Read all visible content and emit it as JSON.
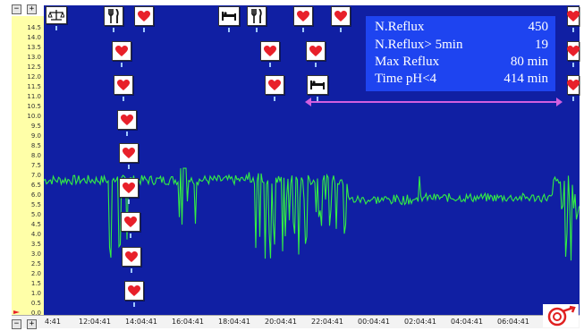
{
  "y_axis": {
    "ticks": [
      "14.5",
      "14.0",
      "13.5",
      "13.0",
      "12.5",
      "12.0",
      "11.5",
      "11.0",
      "10.5",
      "10.0",
      "9.5",
      "9.0",
      "8.5",
      "8.0",
      "7.5",
      "7.0",
      "6.5",
      "6.0",
      "5.5",
      "5.0",
      "4.5",
      "4.0",
      "3.5",
      "3.0",
      "2.5",
      "2.0",
      "1.5",
      "1.0",
      "0.5",
      "0.0"
    ]
  },
  "x_axis": {
    "ticks": [
      "4:41",
      "12:04:41",
      "14:04:41",
      "16:04:41",
      "18:04:41",
      "20:04:41",
      "22:04:41",
      "00:04:41",
      "02:04:41",
      "04:04:41",
      "06:04:41"
    ]
  },
  "controls": {
    "minus": "−",
    "plus": "+"
  },
  "stats": {
    "rows": [
      {
        "label": "N.Reflux",
        "value": "450"
      },
      {
        "label": "N.Reflux> 5min",
        "value": "19"
      },
      {
        "label": "Max Reflux",
        "value": "80 min"
      },
      {
        "label": "Time pH<4",
        "value": "414 min"
      }
    ]
  },
  "colors": {
    "plot_bg": "#101fa3",
    "trace": "#33ee44",
    "stats_bg": "#1e44f0",
    "range_line": "#d25fe0",
    "heart": "#e8202a"
  },
  "markers": [
    {
      "icon": "scale-icon"
    },
    {
      "icon": "meal-icon"
    },
    {
      "icon": "heart-icon"
    },
    {
      "icon": "bed-icon"
    },
    {
      "icon": "meal-icon"
    },
    {
      "icon": "heart-icon"
    },
    {
      "icon": "heart-icon"
    },
    {
      "icon": "heart-icon"
    },
    {
      "icon": "heart-icon"
    },
    {
      "icon": "heart-icon"
    },
    {
      "icon": "heart-icon"
    },
    {
      "icon": "heart-icon"
    },
    {
      "icon": "heart-icon"
    },
    {
      "icon": "heart-icon"
    },
    {
      "icon": "heart-icon"
    },
    {
      "icon": "heart-icon"
    },
    {
      "icon": "heart-icon"
    },
    {
      "icon": "heart-icon"
    },
    {
      "icon": "bed-icon"
    },
    {
      "icon": "heart-icon"
    },
    {
      "icon": "heart-icon"
    },
    {
      "icon": "heart-icon"
    }
  ]
}
